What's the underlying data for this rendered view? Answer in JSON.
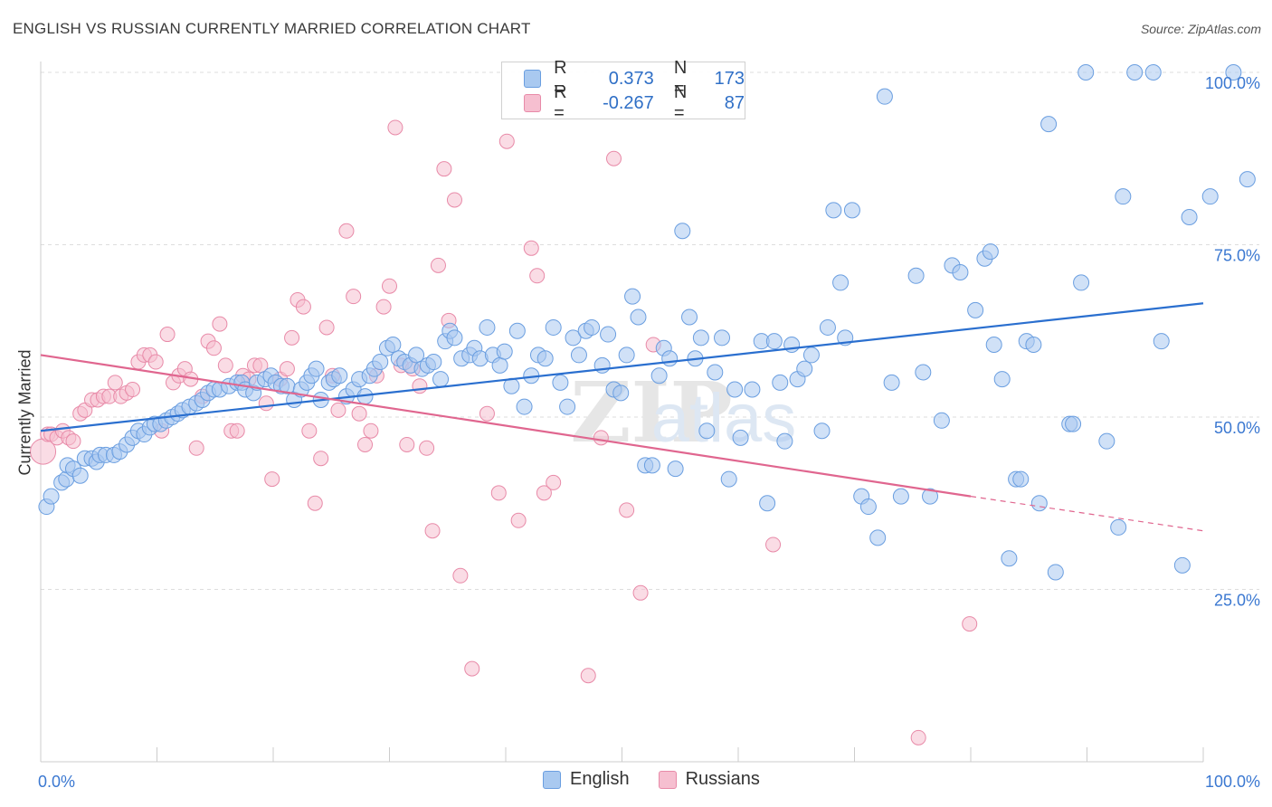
{
  "header": {
    "title": "ENGLISH VS RUSSIAN CURRENTLY MARRIED CORRELATION CHART",
    "source": "Source: ZipAtlas.com"
  },
  "legend_box": {
    "rows": [
      {
        "r_label": "R =",
        "r_value": "0.373",
        "n_label": "N =",
        "n_value": "173"
      },
      {
        "r_label": "R =",
        "r_value": "-0.267",
        "n_label": "N =",
        "n_value": "87"
      }
    ]
  },
  "bottom_legend": [
    "English",
    "Russians"
  ],
  "colors": {
    "english_fill": "#a9c9f0",
    "english_stroke": "#6a9ee0",
    "english_line": "#2a6fcf",
    "russian_fill": "#f6bfd0",
    "russian_stroke": "#e88aa8",
    "russian_line": "#e0668f",
    "tick_text": "#3b78d1",
    "grid": "#dddddd"
  },
  "chart_data": {
    "type": "scatter",
    "title": "ENGLISH VS RUSSIAN CURRENTLY MARRIED CORRELATION CHART",
    "xlabel": "",
    "ylabel": "Currently Married",
    "xlim": [
      0,
      100
    ],
    "ylim": [
      0,
      100
    ],
    "x_tick_labels": [
      "0.0%",
      "100.0%"
    ],
    "y_tick_labels": [
      "25.0%",
      "50.0%",
      "75.0%",
      "100.0%"
    ],
    "y_tick_values": [
      25,
      50,
      75,
      100
    ],
    "grid": true,
    "watermark": "ZIPatlas",
    "series": [
      {
        "name": "English",
        "R": 0.373,
        "N": 173,
        "trend": {
          "x0": 0,
          "y0": 48.0,
          "x1": 100,
          "y1": 66.5
        },
        "points": [
          [
            0.5,
            37
          ],
          [
            0.9,
            38.5
          ],
          [
            1.8,
            40.5
          ],
          [
            2.2,
            41
          ],
          [
            2.3,
            43
          ],
          [
            2.8,
            42.5
          ],
          [
            3.4,
            41.5
          ],
          [
            3.8,
            44
          ],
          [
            4.4,
            44
          ],
          [
            4.8,
            43.5
          ],
          [
            5.1,
            44.5
          ],
          [
            5.6,
            44.5
          ],
          [
            6.3,
            44.5
          ],
          [
            6.8,
            45
          ],
          [
            7.4,
            46
          ],
          [
            7.9,
            47
          ],
          [
            8.4,
            48
          ],
          [
            8.9,
            47.5
          ],
          [
            9.4,
            48.5
          ],
          [
            9.8,
            49
          ],
          [
            10.3,
            49
          ],
          [
            10.8,
            49.5
          ],
          [
            11.3,
            50
          ],
          [
            11.8,
            50.5
          ],
          [
            12.2,
            51
          ],
          [
            12.8,
            51.5
          ],
          [
            13.4,
            52
          ],
          [
            13.9,
            52.5
          ],
          [
            14.4,
            53.5
          ],
          [
            14.9,
            54
          ],
          [
            15.4,
            54
          ],
          [
            16.2,
            54.5
          ],
          [
            16.9,
            55
          ],
          [
            17.3,
            55
          ],
          [
            17.6,
            54
          ],
          [
            18.3,
            53.5
          ],
          [
            18.6,
            55
          ],
          [
            19.3,
            55.5
          ],
          [
            19.8,
            56
          ],
          [
            20.2,
            55
          ],
          [
            20.7,
            54.5
          ],
          [
            21.2,
            54.5
          ],
          [
            21.8,
            52.5
          ],
          [
            22.4,
            54
          ],
          [
            22.9,
            55
          ],
          [
            23.3,
            56
          ],
          [
            23.7,
            57
          ],
          [
            24.1,
            52.5
          ],
          [
            24.8,
            55
          ],
          [
            25.2,
            55.5
          ],
          [
            25.7,
            56
          ],
          [
            26.3,
            53
          ],
          [
            26.9,
            54
          ],
          [
            27.4,
            55.5
          ],
          [
            27.9,
            53
          ],
          [
            28.3,
            56
          ],
          [
            28.7,
            57
          ],
          [
            29.2,
            58
          ],
          [
            29.8,
            60
          ],
          [
            30.3,
            60.5
          ],
          [
            30.8,
            58.5
          ],
          [
            31.3,
            58
          ],
          [
            31.8,
            57.5
          ],
          [
            32.3,
            59
          ],
          [
            32.8,
            57
          ],
          [
            33.3,
            57.5
          ],
          [
            33.8,
            58
          ],
          [
            34.4,
            55.5
          ],
          [
            34.8,
            61
          ],
          [
            35.2,
            62.5
          ],
          [
            35.6,
            61.5
          ],
          [
            36.2,
            58.5
          ],
          [
            36.9,
            59
          ],
          [
            37.3,
            60
          ],
          [
            37.8,
            58.5
          ],
          [
            38.4,
            63
          ],
          [
            38.9,
            59
          ],
          [
            39.5,
            57.5
          ],
          [
            39.9,
            59.5
          ],
          [
            40.5,
            54.5
          ],
          [
            41.0,
            62.5
          ],
          [
            41.6,
            51.5
          ],
          [
            42.2,
            56
          ],
          [
            42.8,
            59
          ],
          [
            43.4,
            58.5
          ],
          [
            44.1,
            63
          ],
          [
            44.7,
            55
          ],
          [
            45.3,
            51.5
          ],
          [
            45.8,
            61.5
          ],
          [
            46.3,
            59
          ],
          [
            46.9,
            62.5
          ],
          [
            47.4,
            63
          ],
          [
            48.3,
            57.5
          ],
          [
            48.8,
            62
          ],
          [
            49.3,
            54
          ],
          [
            49.9,
            53.5
          ],
          [
            50.4,
            59
          ],
          [
            50.9,
            67.5
          ],
          [
            51.4,
            64.5
          ],
          [
            52.0,
            43
          ],
          [
            52.6,
            43
          ],
          [
            53.2,
            56
          ],
          [
            53.6,
            60
          ],
          [
            54.1,
            58.5
          ],
          [
            54.6,
            42.5
          ],
          [
            55.2,
            77
          ],
          [
            55.8,
            64.5
          ],
          [
            56.3,
            58.5
          ],
          [
            56.8,
            61.5
          ],
          [
            57.3,
            48
          ],
          [
            58.0,
            56.5
          ],
          [
            58.6,
            61.5
          ],
          [
            59.2,
            41
          ],
          [
            59.7,
            54
          ],
          [
            60.2,
            47
          ],
          [
            61.2,
            54
          ],
          [
            62.0,
            61
          ],
          [
            62.5,
            37.5
          ],
          [
            63.1,
            61
          ],
          [
            63.6,
            55
          ],
          [
            64.0,
            46.5
          ],
          [
            64.6,
            60.5
          ],
          [
            65.1,
            55.5
          ],
          [
            65.7,
            57
          ],
          [
            66.3,
            59
          ],
          [
            67.2,
            48
          ],
          [
            67.7,
            63
          ],
          [
            68.2,
            80
          ],
          [
            68.8,
            69.5
          ],
          [
            69.2,
            61.5
          ],
          [
            69.8,
            80
          ],
          [
            70.6,
            38.5
          ],
          [
            71.2,
            37
          ],
          [
            72.0,
            32.5
          ],
          [
            72.6,
            96.5
          ],
          [
            73.2,
            55
          ],
          [
            74.0,
            38.5
          ],
          [
            75.3,
            70.5
          ],
          [
            75.9,
            56.5
          ],
          [
            76.5,
            38.5
          ],
          [
            77.5,
            49.5
          ],
          [
            78.4,
            72
          ],
          [
            79.1,
            71
          ],
          [
            80.4,
            65.5
          ],
          [
            81.2,
            73
          ],
          [
            81.7,
            74
          ],
          [
            82.0,
            60.5
          ],
          [
            82.7,
            55.5
          ],
          [
            83.3,
            29.5
          ],
          [
            83.9,
            41
          ],
          [
            84.3,
            41
          ],
          [
            84.8,
            61
          ],
          [
            85.4,
            60.5
          ],
          [
            85.9,
            37.5
          ],
          [
            86.7,
            92.5
          ],
          [
            87.3,
            27.5
          ],
          [
            88.5,
            49
          ],
          [
            88.8,
            49
          ],
          [
            89.5,
            69.5
          ],
          [
            89.9,
            100
          ],
          [
            91.7,
            46.5
          ],
          [
            92.7,
            34
          ],
          [
            93.1,
            82
          ],
          [
            94.1,
            100
          ],
          [
            95.7,
            100
          ],
          [
            96.4,
            61
          ],
          [
            98.2,
            28.5
          ],
          [
            98.8,
            79
          ],
          [
            100.6,
            82
          ],
          [
            102.6,
            100
          ],
          [
            103.8,
            84.5
          ]
        ]
      },
      {
        "name": "Russians",
        "R": -0.267,
        "N": 87,
        "trend": {
          "x0": 0,
          "y0": 59.0,
          "x1": 80,
          "y1": 38.5,
          "dash_x1": 100,
          "dash_y1": 33.5
        },
        "points": [
          [
            0.2,
            45
          ],
          [
            0.6,
            47.5
          ],
          [
            0.9,
            47.5
          ],
          [
            1.4,
            47
          ],
          [
            1.9,
            48
          ],
          [
            2.4,
            47
          ],
          [
            2.8,
            46.5
          ],
          [
            3.4,
            50.5
          ],
          [
            3.8,
            51
          ],
          [
            4.4,
            52.5
          ],
          [
            4.9,
            52.5
          ],
          [
            5.4,
            53
          ],
          [
            5.9,
            53
          ],
          [
            6.4,
            55
          ],
          [
            6.9,
            53
          ],
          [
            7.4,
            53.5
          ],
          [
            7.9,
            54
          ],
          [
            8.4,
            58
          ],
          [
            8.9,
            59
          ],
          [
            9.4,
            59
          ],
          [
            9.9,
            58
          ],
          [
            10.4,
            48
          ],
          [
            10.9,
            62
          ],
          [
            11.4,
            55
          ],
          [
            11.9,
            56
          ],
          [
            12.4,
            57
          ],
          [
            12.9,
            55.5
          ],
          [
            13.4,
            45.5
          ],
          [
            13.9,
            53
          ],
          [
            14.4,
            61
          ],
          [
            14.9,
            60
          ],
          [
            15.4,
            63.5
          ],
          [
            15.9,
            57.5
          ],
          [
            16.4,
            48
          ],
          [
            16.9,
            48
          ],
          [
            17.4,
            56
          ],
          [
            17.9,
            55.5
          ],
          [
            18.4,
            57.5
          ],
          [
            18.9,
            57.5
          ],
          [
            19.4,
            52
          ],
          [
            19.9,
            41
          ],
          [
            20.6,
            55.5
          ],
          [
            21.2,
            57
          ],
          [
            21.6,
            61.5
          ],
          [
            22.1,
            67
          ],
          [
            22.6,
            66
          ],
          [
            23.1,
            48
          ],
          [
            23.6,
            37.5
          ],
          [
            24.1,
            44
          ],
          [
            24.6,
            63
          ],
          [
            25.1,
            56
          ],
          [
            25.6,
            51
          ],
          [
            26.3,
            77
          ],
          [
            26.9,
            67.5
          ],
          [
            27.4,
            50.5
          ],
          [
            27.9,
            46
          ],
          [
            28.4,
            48
          ],
          [
            28.9,
            56
          ],
          [
            29.5,
            66
          ],
          [
            30.0,
            69
          ],
          [
            30.5,
            92
          ],
          [
            31.0,
            57.5
          ],
          [
            31.5,
            46
          ],
          [
            32.0,
            57
          ],
          [
            32.6,
            54.5
          ],
          [
            33.2,
            45.5
          ],
          [
            33.7,
            33.5
          ],
          [
            34.2,
            72
          ],
          [
            34.7,
            86
          ],
          [
            35.1,
            64
          ],
          [
            35.6,
            81.5
          ],
          [
            36.1,
            27
          ],
          [
            37.1,
            13.5
          ],
          [
            38.4,
            50.5
          ],
          [
            39.4,
            39
          ],
          [
            40.1,
            90
          ],
          [
            41.1,
            35
          ],
          [
            42.2,
            74.5
          ],
          [
            42.7,
            70.5
          ],
          [
            43.3,
            39
          ],
          [
            44.1,
            40.5
          ],
          [
            47.1,
            12.5
          ],
          [
            48.2,
            47
          ],
          [
            49.3,
            87.5
          ],
          [
            50.4,
            36.5
          ],
          [
            51.6,
            24.5
          ],
          [
            52.7,
            60.5
          ],
          [
            63.0,
            31.5
          ],
          [
            75.5,
            3.5
          ],
          [
            79.9,
            20
          ]
        ]
      }
    ]
  }
}
